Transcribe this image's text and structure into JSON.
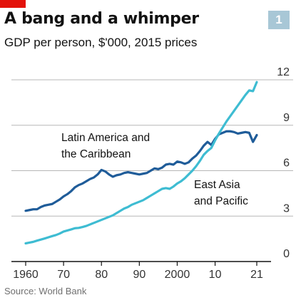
{
  "header": {
    "title": "A bang and a whimper",
    "subtitle": "GDP per person, $'000, 2015 prices",
    "chart_number": "1"
  },
  "footer": {
    "source": "Source: World Bank"
  },
  "colors": {
    "accent": "#e3120b",
    "latin_america": "#1f5c99",
    "east_asia": "#3ebcd2",
    "gridline": "#b7b7b7",
    "baseline": "#121212",
    "badge": "#a8c7d6"
  },
  "chart_data": {
    "type": "line",
    "title": "A bang and a whimper",
    "subtitle": "GDP per person, $'000, 2015 prices",
    "xlabel": "",
    "ylabel": "",
    "x_range": [
      1960,
      2021
    ],
    "ylim": [
      0,
      12
    ],
    "y_ticks": [
      0,
      3,
      6,
      9,
      12
    ],
    "x_tick_labels": [
      {
        "year": 1960,
        "label": "1960"
      },
      {
        "year": 1970,
        "label": "70"
      },
      {
        "year": 1980,
        "label": "80"
      },
      {
        "year": 1990,
        "label": "90"
      },
      {
        "year": 2000,
        "label": "2000"
      },
      {
        "year": 2010,
        "label": "10"
      },
      {
        "year": 2021,
        "label": "21"
      }
    ],
    "y_axis_position": "right",
    "grid": true,
    "x": [
      1960,
      1961,
      1962,
      1963,
      1964,
      1965,
      1966,
      1967,
      1968,
      1969,
      1970,
      1971,
      1972,
      1973,
      1974,
      1975,
      1976,
      1977,
      1978,
      1979,
      1980,
      1981,
      1982,
      1983,
      1984,
      1985,
      1986,
      1987,
      1988,
      1989,
      1990,
      1991,
      1992,
      1993,
      1994,
      1995,
      1996,
      1997,
      1998,
      1999,
      2000,
      2001,
      2002,
      2003,
      2004,
      2005,
      2006,
      2007,
      2008,
      2009,
      2010,
      2011,
      2012,
      2013,
      2014,
      2015,
      2016,
      2017,
      2018,
      2019,
      2020,
      2021
    ],
    "series": [
      {
        "name": "Latin America and the Caribbean",
        "label_lines": [
          "Latin America and",
          "the Caribbean"
        ],
        "color": "#1f5c99",
        "values": [
          3.35,
          3.4,
          3.45,
          3.45,
          3.6,
          3.7,
          3.75,
          3.8,
          3.95,
          4.1,
          4.3,
          4.45,
          4.65,
          4.9,
          5.05,
          5.15,
          5.3,
          5.45,
          5.55,
          5.75,
          6.05,
          5.95,
          5.75,
          5.6,
          5.7,
          5.75,
          5.85,
          5.9,
          5.85,
          5.8,
          5.75,
          5.8,
          5.85,
          6.0,
          6.15,
          6.1,
          6.2,
          6.4,
          6.45,
          6.4,
          6.6,
          6.55,
          6.45,
          6.55,
          6.8,
          7.0,
          7.3,
          7.65,
          7.9,
          7.7,
          8.1,
          8.4,
          8.5,
          8.6,
          8.6,
          8.55,
          8.45,
          8.5,
          8.55,
          8.5,
          7.9,
          8.35
        ]
      },
      {
        "name": "East Asia and Pacific",
        "label_lines": [
          "East Asia",
          "and Pacific"
        ],
        "color": "#3ebcd2",
        "values": [
          1.2,
          1.25,
          1.3,
          1.38,
          1.45,
          1.52,
          1.6,
          1.68,
          1.75,
          1.85,
          1.98,
          2.05,
          2.12,
          2.2,
          2.22,
          2.28,
          2.35,
          2.45,
          2.55,
          2.65,
          2.75,
          2.85,
          2.95,
          3.05,
          3.2,
          3.35,
          3.5,
          3.6,
          3.75,
          3.85,
          3.95,
          4.05,
          4.2,
          4.35,
          4.5,
          4.65,
          4.8,
          4.85,
          4.8,
          4.95,
          5.15,
          5.3,
          5.5,
          5.75,
          6.0,
          6.3,
          6.65,
          7.05,
          7.3,
          7.5,
          8.0,
          8.45,
          8.85,
          9.25,
          9.6,
          9.95,
          10.3,
          10.65,
          11.0,
          11.3,
          11.25,
          11.85
        ]
      }
    ]
  }
}
